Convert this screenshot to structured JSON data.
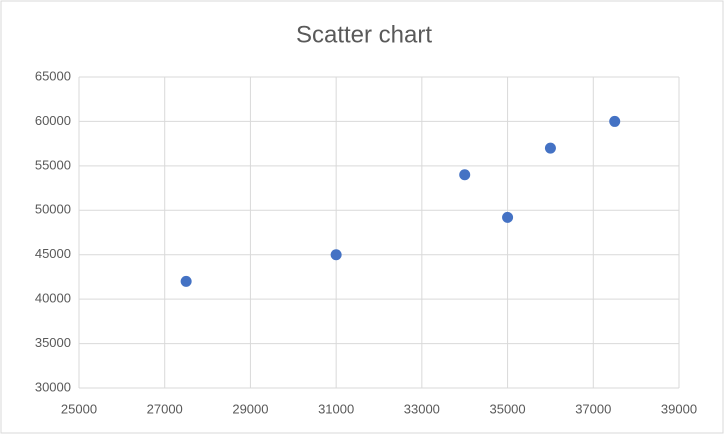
{
  "chart_data": {
    "type": "scatter",
    "title": "Scatter chart",
    "series": [
      {
        "color": "#4472c4",
        "x": [
          27500,
          31000,
          34000,
          35000,
          36000,
          37500
        ],
        "values": [
          42000,
          45000,
          54000,
          49200,
          57000,
          60000
        ]
      }
    ],
    "xlim": [
      25000,
      39000
    ],
    "xticks": [
      25000,
      27000,
      29000,
      31000,
      33000,
      35000,
      37000,
      39000
    ],
    "ylim": [
      30000,
      65000
    ],
    "yticks": [
      30000,
      35000,
      40000,
      45000,
      50000,
      55000,
      60000,
      65000
    ],
    "grid": true
  }
}
